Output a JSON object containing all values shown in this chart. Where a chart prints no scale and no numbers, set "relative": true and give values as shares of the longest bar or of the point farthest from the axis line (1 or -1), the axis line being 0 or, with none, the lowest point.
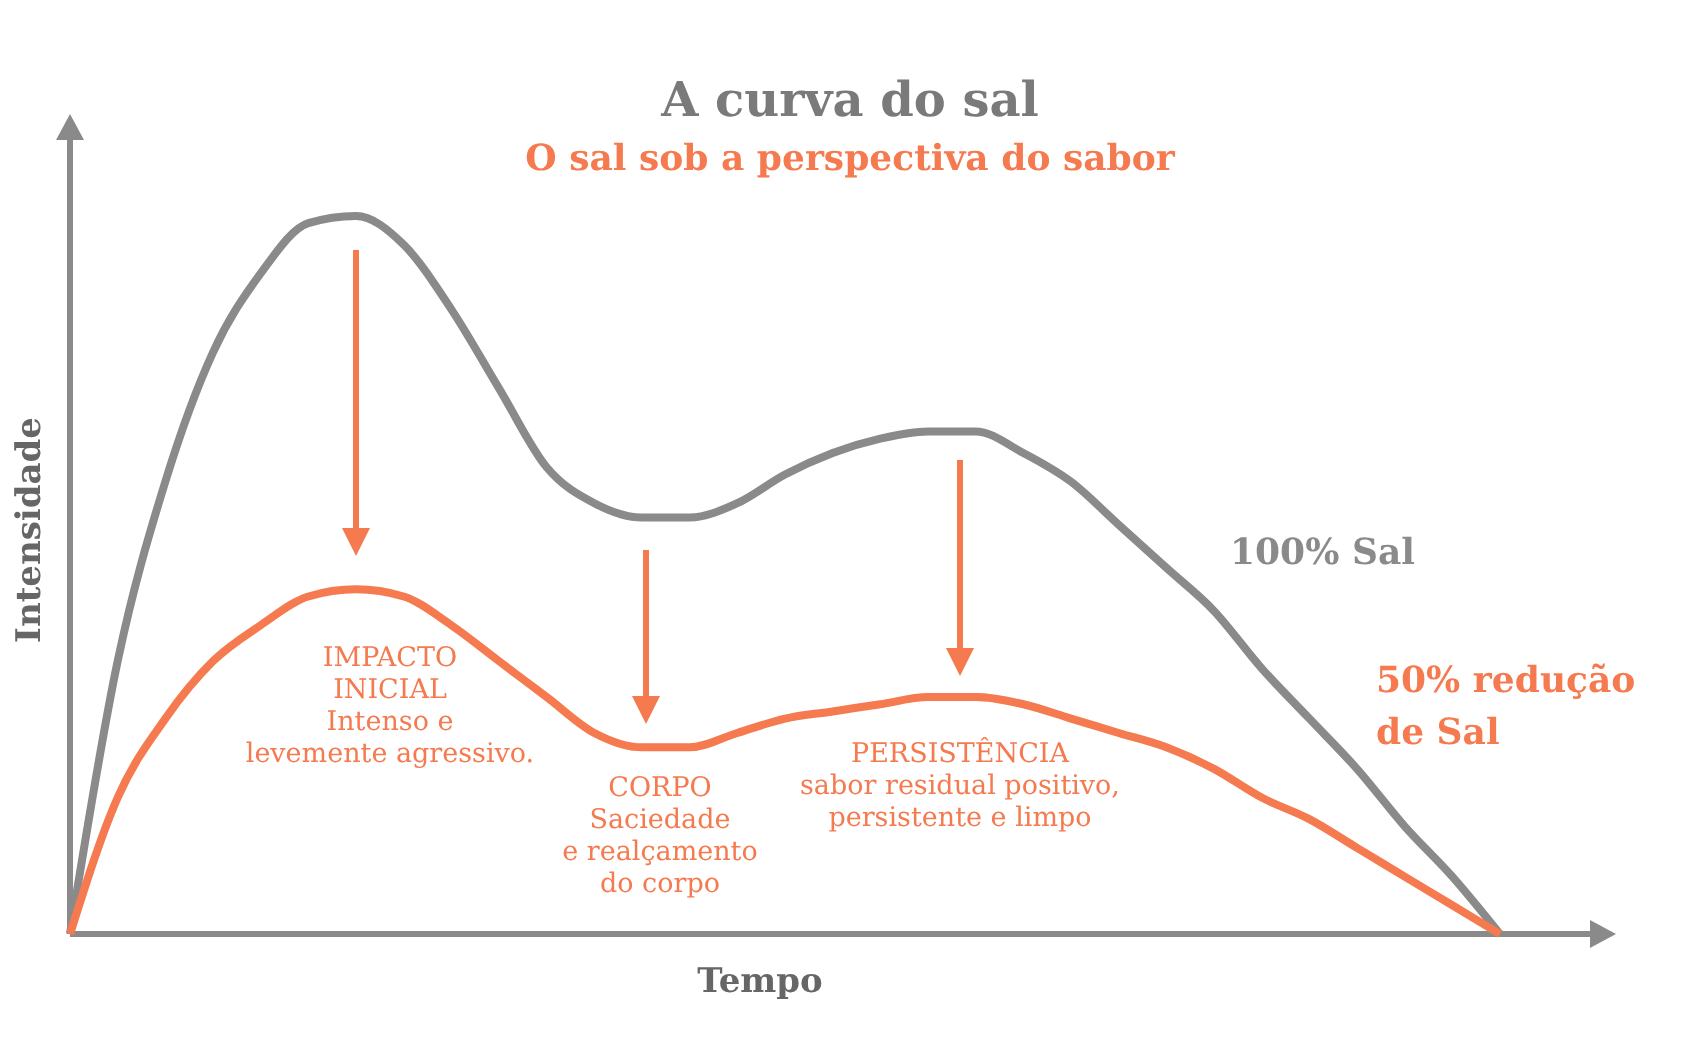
{
  "chart_data": {
    "type": "line",
    "title": "A curva do sal",
    "subtitle": "O sal sob a perspectiva do sabor",
    "xlabel": "Tempo",
    "ylabel": "Intensidade",
    "relative": true,
    "legend": false,
    "marker": "none",
    "line_style": "solid",
    "grid": false,
    "categories": [
      null,
      null,
      null,
      null,
      null,
      null,
      null,
      null,
      null,
      null,
      null,
      null,
      null,
      null,
      null,
      null,
      null,
      null,
      null,
      null,
      null,
      null,
      null,
      null,
      null,
      null,
      null,
      null,
      null,
      null,
      null
    ],
    "series": [
      {
        "name": "100% Sal",
        "color": "#8a8a8a",
        "values": [
          0,
          0.38,
          0.63,
          0.81,
          0.92,
          0.99,
          1.0,
          0.96,
          0.87,
          0.76,
          0.65,
          0.6,
          0.58,
          0.58,
          0.6,
          0.64,
          0.67,
          0.69,
          0.7,
          0.7,
          0.67,
          0.63,
          0.57,
          0.51,
          0.45,
          0.37,
          0.3,
          0.23,
          0.15,
          0.08,
          0
        ]
      },
      {
        "name": "50% redução de Sal",
        "color": "#f57a4f",
        "values": [
          0,
          0.19,
          0.3,
          0.38,
          0.43,
          0.47,
          0.48,
          0.47,
          0.43,
          0.38,
          0.33,
          0.28,
          0.26,
          0.26,
          0.28,
          0.3,
          0.31,
          0.32,
          0.33,
          0.33,
          0.32,
          0.3,
          0.28,
          0.26,
          0.23,
          0.19,
          0.16,
          0.12,
          0.08,
          0.04,
          0
        ]
      }
    ],
    "annotations": [
      "IMPACTO\nINICIAL\nIntenso e\nlevemente agressivo.",
      "CORPO\nSaciedade\ne realçamento\ndo corpo",
      "PERSISTÊNCIA\nsabor residual positivo,\npersistente e limpo"
    ]
  }
}
